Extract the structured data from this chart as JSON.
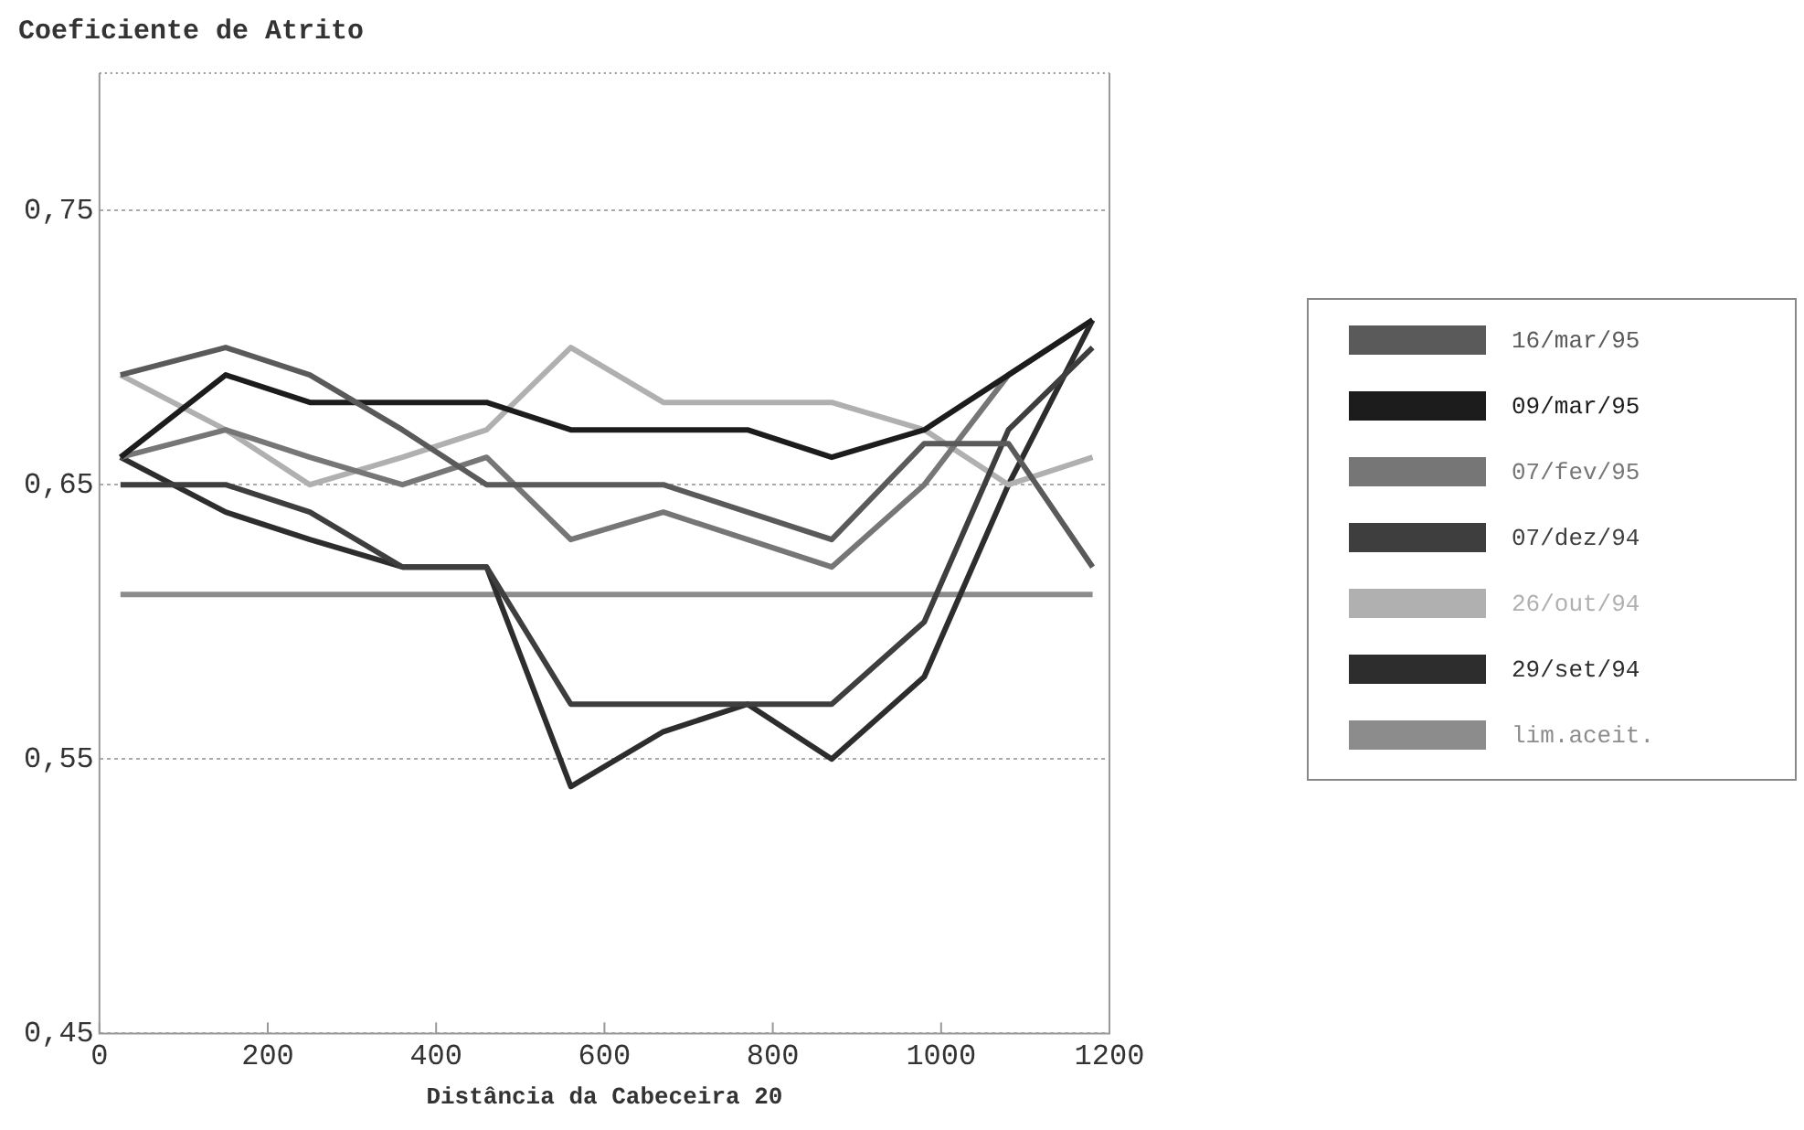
{
  "chart_data": {
    "type": "line",
    "title": "Coeficiente de Atrito",
    "xlabel": "Distância da Cabeceira 20",
    "x": [
      25,
      150,
      250,
      360,
      460,
      560,
      670,
      770,
      870,
      980,
      1080,
      1180
    ],
    "series": [
      {
        "name": "16/mar/95",
        "color": "#5a5a5a",
        "values": [
          0.69,
          0.7,
          0.69,
          0.67,
          0.65,
          0.65,
          0.65,
          0.64,
          0.63,
          0.665,
          0.665,
          0.62
        ]
      },
      {
        "name": "09/mar/95",
        "color": "#1c1c1c",
        "values": [
          0.66,
          0.69,
          0.68,
          0.68,
          0.68,
          0.67,
          0.67,
          0.67,
          0.66,
          0.67,
          0.69,
          0.71
        ]
      },
      {
        "name": "07/fev/95",
        "color": "#767676",
        "values": [
          0.66,
          0.67,
          0.66,
          0.65,
          0.66,
          0.63,
          0.64,
          0.63,
          0.62,
          0.65,
          0.69,
          0.71
        ]
      },
      {
        "name": "07/dez/94",
        "color": "#3e3e3e",
        "values": [
          0.65,
          0.65,
          0.64,
          0.62,
          0.62,
          0.57,
          0.57,
          0.57,
          0.57,
          0.6,
          0.67,
          0.7
        ]
      },
      {
        "name": "26/out/94",
        "color": "#b0b0b0",
        "values": [
          0.69,
          0.67,
          0.65,
          0.66,
          0.67,
          0.7,
          0.68,
          0.68,
          0.68,
          0.67,
          0.65,
          0.66
        ]
      },
      {
        "name": "29/set/94",
        "color": "#2d2d2d",
        "values": [
          0.66,
          0.64,
          0.63,
          0.62,
          0.62,
          0.54,
          0.56,
          0.57,
          0.55,
          0.58,
          0.65,
          0.71
        ]
      },
      {
        "name": "lim.aceit.",
        "color": "#8c8c8c",
        "values": [
          0.61,
          0.61,
          0.61,
          0.61,
          0.61,
          0.61,
          0.61,
          0.61,
          0.61,
          0.61,
          0.61,
          0.61
        ]
      }
    ],
    "xlim": [
      0,
      1200
    ],
    "xticks": [
      0,
      200,
      400,
      600,
      800,
      1000,
      1200
    ],
    "ylim": [
      0.45,
      0.8
    ],
    "yticks": [
      {
        "value": 0.45,
        "label": "0,45"
      },
      {
        "value": 0.55,
        "label": "0,55"
      },
      {
        "value": 0.65,
        "label": "0,65"
      },
      {
        "value": 0.75,
        "label": "0,75"
      }
    ],
    "grid": "y",
    "legend": "right",
    "marker": "none",
    "line_style": "solid"
  }
}
